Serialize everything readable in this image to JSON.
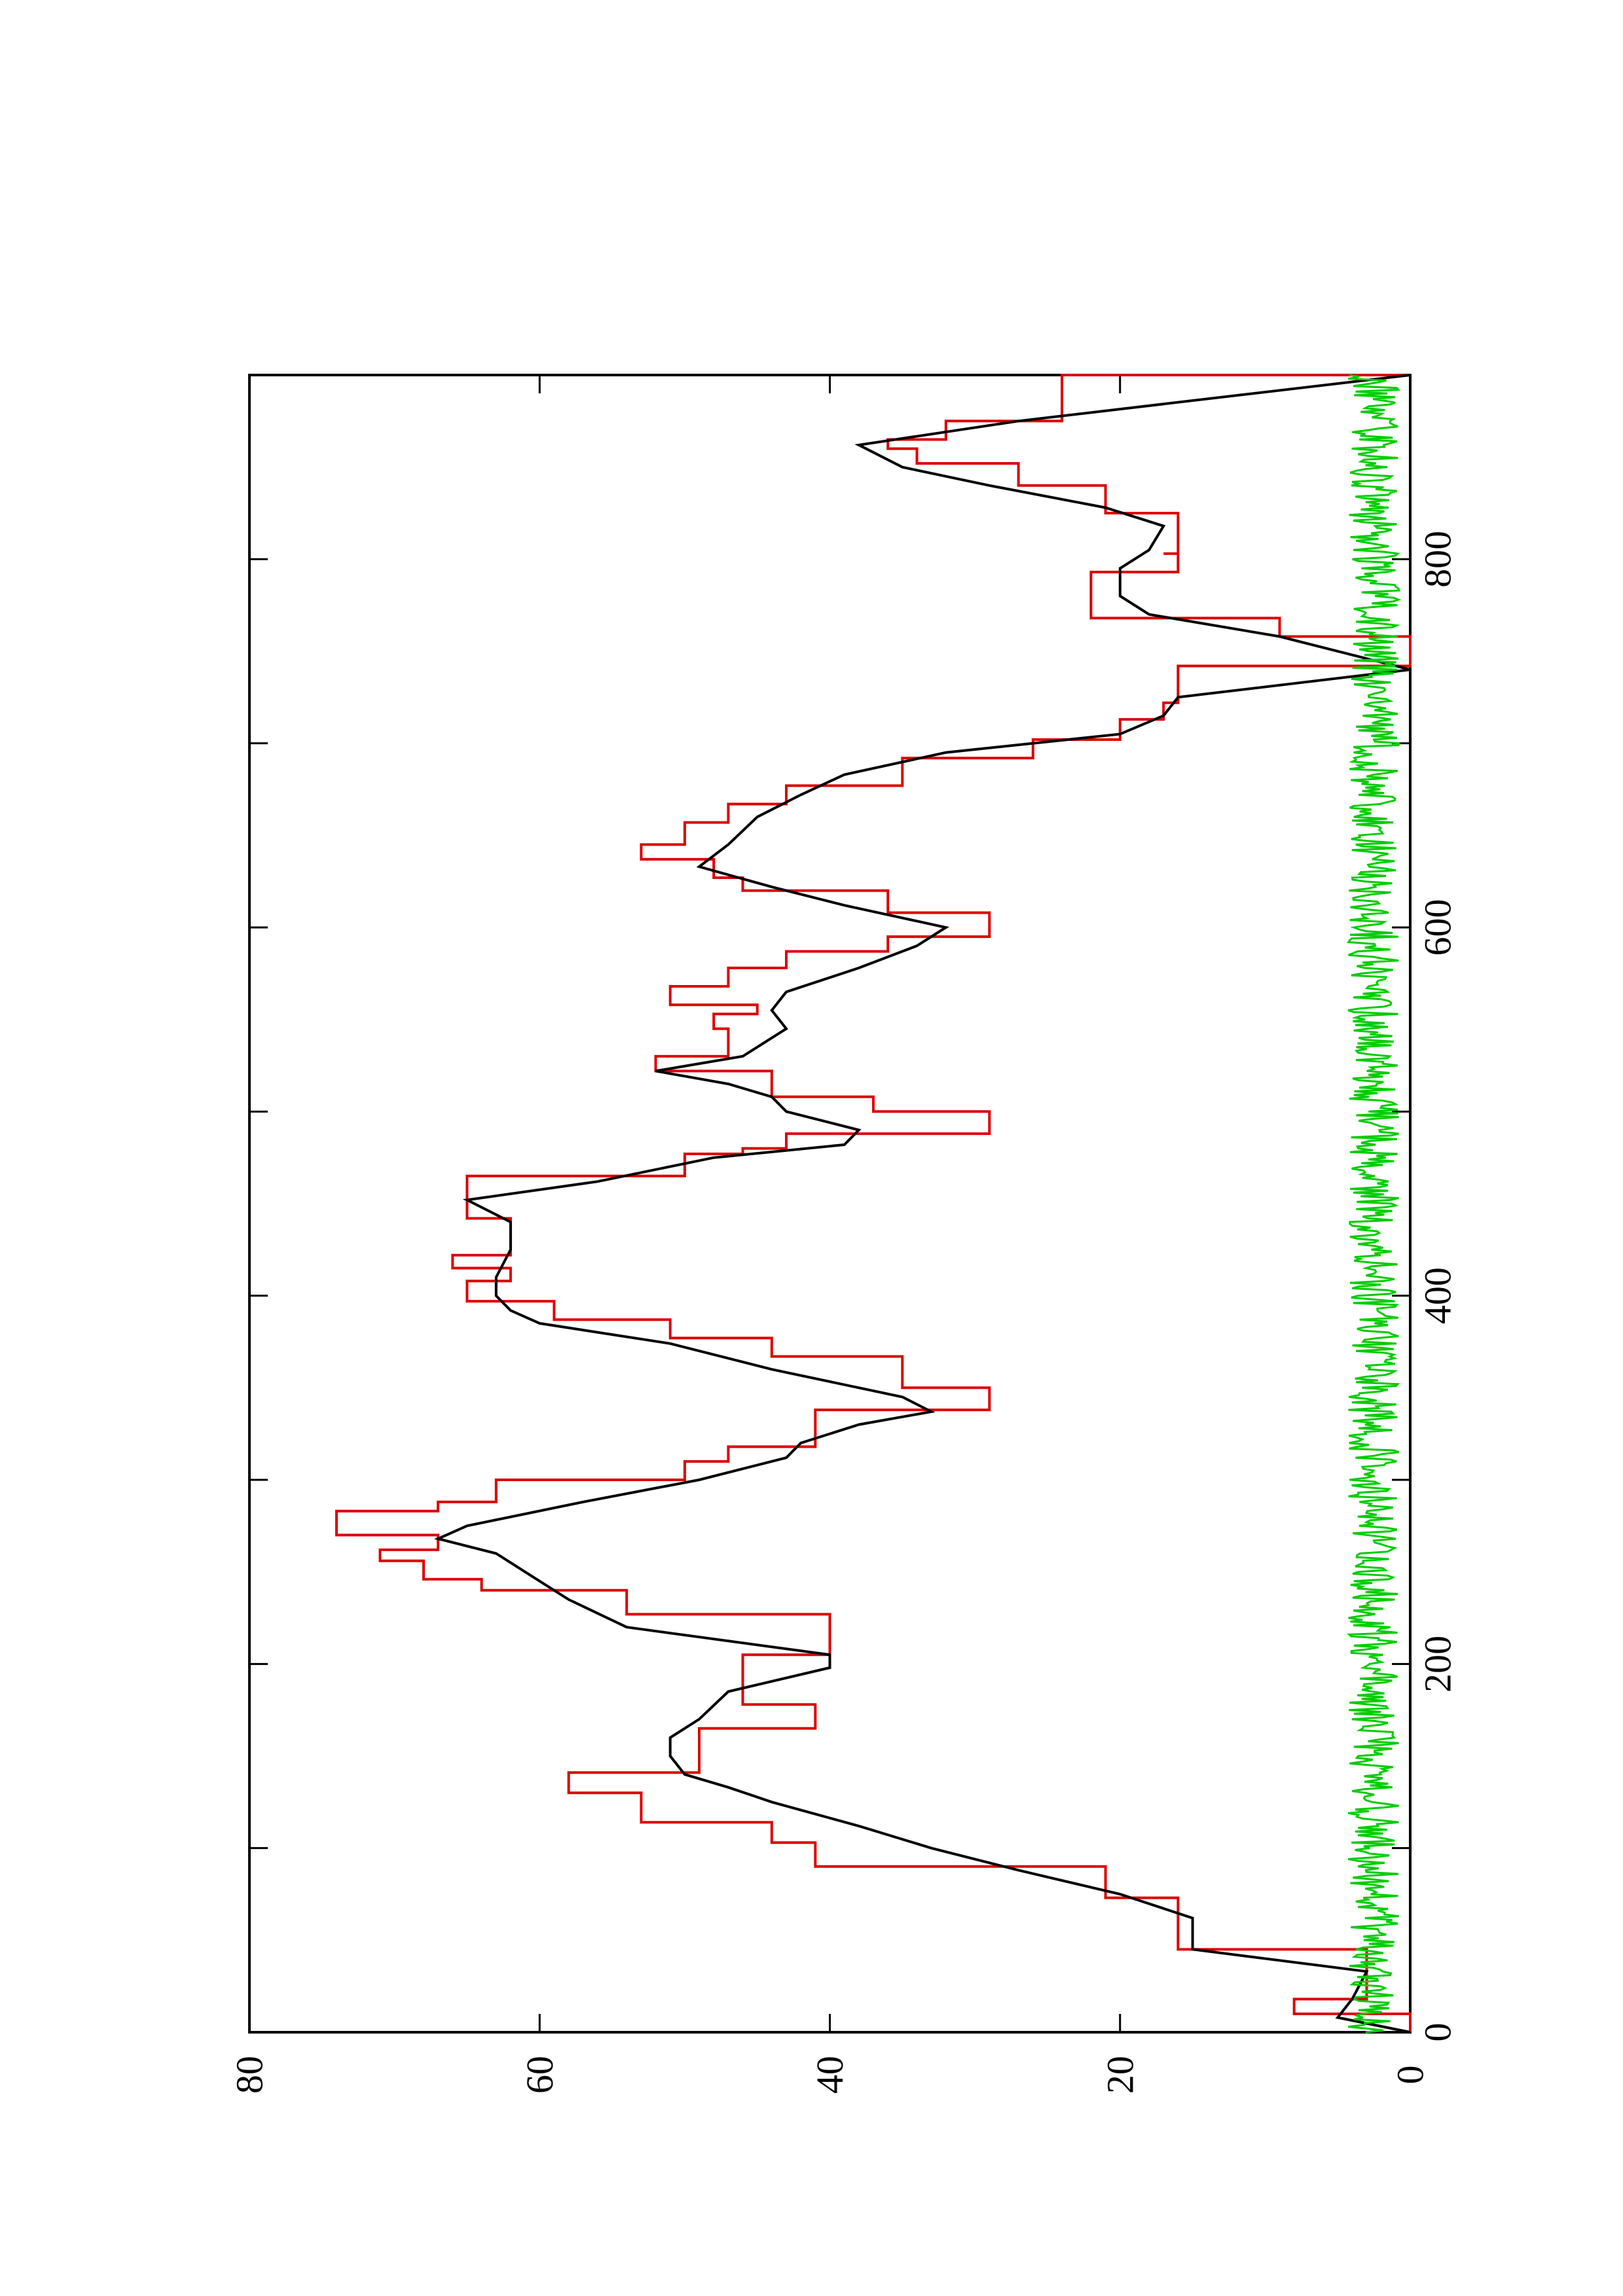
{
  "chart_data": {
    "type": "line",
    "orientation": "rotated 90 degrees counter-clockwise (x axis runs up the page, y axis runs left across the page)",
    "title": "",
    "xlabel": "",
    "ylabel": "",
    "xlim": [
      0,
      900
    ],
    "ylim": [
      0,
      80
    ],
    "x_ticks": [
      0,
      200,
      400,
      600,
      800
    ],
    "y_ticks": [
      0,
      20,
      40,
      60,
      80
    ],
    "x_minor_ticks": [
      100,
      300,
      500,
      700
    ],
    "x_tick_labels": [
      "0",
      "200",
      "400",
      "600",
      "800"
    ],
    "y_tick_labels": [
      "0",
      "20",
      "40",
      "60",
      "80"
    ],
    "grid": false,
    "legend": "none",
    "series": [
      {
        "color": "#dd0000",
        "style": "step",
        "points": [
          [
            0,
            0
          ],
          [
            10,
            8
          ],
          [
            18,
            3
          ],
          [
            33,
            3
          ],
          [
            45,
            16
          ],
          [
            62,
            16
          ],
          [
            73,
            21
          ],
          [
            90,
            41
          ],
          [
            103,
            44
          ],
          [
            114,
            53
          ],
          [
            130,
            58
          ],
          [
            141,
            49
          ],
          [
            165,
            46
          ],
          [
            165,
            41
          ],
          [
            178,
            41
          ],
          [
            178,
            46
          ],
          [
            205,
            40
          ],
          [
            227,
            54
          ],
          [
            240,
            64
          ],
          [
            246,
            68
          ],
          [
            256,
            71
          ],
          [
            262,
            67
          ],
          [
            270,
            74
          ],
          [
            283,
            67
          ],
          [
            288,
            63
          ],
          [
            300,
            50
          ],
          [
            310,
            47
          ],
          [
            318,
            41
          ],
          [
            324,
            41
          ],
          [
            338,
            29
          ],
          [
            350,
            35
          ],
          [
            367,
            44
          ],
          [
            377,
            51
          ],
          [
            387,
            59
          ],
          [
            397,
            65
          ],
          [
            408,
            62
          ],
          [
            415,
            66
          ],
          [
            422,
            62
          ],
          [
            433,
            62
          ],
          [
            442,
            65
          ],
          [
            452,
            65
          ],
          [
            465,
            50
          ],
          [
            477,
            46
          ],
          [
            480,
            43
          ],
          [
            488,
            29
          ],
          [
            500,
            37
          ],
          [
            508,
            44
          ],
          [
            522,
            52
          ],
          [
            530,
            47
          ],
          [
            545,
            48
          ],
          [
            553,
            45
          ],
          [
            558,
            51
          ],
          [
            568,
            47
          ],
          [
            578,
            43
          ],
          [
            587,
            36
          ],
          [
            595,
            29
          ],
          [
            608,
            36
          ],
          [
            620,
            46
          ],
          [
            627,
            48
          ],
          [
            637,
            53
          ],
          [
            645,
            50
          ],
          [
            657,
            47
          ],
          [
            667,
            43
          ],
          [
            677,
            35
          ],
          [
            692,
            26
          ],
          [
            702,
            20
          ],
          [
            713,
            17
          ],
          [
            722,
            16
          ],
          [
            742,
            0
          ],
          [
            758,
            9
          ],
          [
            768,
            22
          ],
          [
            785,
            22
          ],
          [
            793,
            16
          ],
          [
            803,
            17
          ],
          [
            803,
            16
          ],
          [
            812,
            16
          ],
          [
            825,
            21
          ],
          [
            840,
            27
          ],
          [
            852,
            34
          ],
          [
            860,
            36
          ],
          [
            865,
            32
          ],
          [
            875,
            24
          ],
          [
            900,
            0
          ]
        ]
      },
      {
        "color": "#000000",
        "style": "line",
        "points": [
          [
            0,
            0
          ],
          [
            8,
            5
          ],
          [
            18,
            4
          ],
          [
            33,
            3
          ],
          [
            45,
            15
          ],
          [
            62,
            15
          ],
          [
            75,
            20
          ],
          [
            88,
            27
          ],
          [
            100,
            33
          ],
          [
            112,
            38
          ],
          [
            125,
            44
          ],
          [
            133,
            47
          ],
          [
            140,
            50
          ],
          [
            150,
            51
          ],
          [
            160,
            51
          ],
          [
            170,
            49
          ],
          [
            185,
            47
          ],
          [
            198,
            40
          ],
          [
            205,
            40
          ],
          [
            220,
            54
          ],
          [
            235,
            58
          ],
          [
            250,
            61
          ],
          [
            260,
            63
          ],
          [
            268,
            67
          ],
          [
            275,
            65
          ],
          [
            288,
            57
          ],
          [
            300,
            49
          ],
          [
            312,
            43
          ],
          [
            320,
            42
          ],
          [
            330,
            38
          ],
          [
            337,
            33
          ],
          [
            345,
            35
          ],
          [
            360,
            44
          ],
          [
            374,
            51
          ],
          [
            385,
            60
          ],
          [
            392,
            62
          ],
          [
            400,
            63
          ],
          [
            410,
            63
          ],
          [
            425,
            62
          ],
          [
            440,
            62
          ],
          [
            452,
            65
          ],
          [
            462,
            56
          ],
          [
            475,
            48
          ],
          [
            482,
            39
          ],
          [
            490,
            38
          ],
          [
            500,
            43
          ],
          [
            508,
            44
          ],
          [
            515,
            47
          ],
          [
            522,
            52
          ],
          [
            530,
            46
          ],
          [
            545,
            43
          ],
          [
            555,
            44
          ],
          [
            565,
            43
          ],
          [
            578,
            38
          ],
          [
            590,
            34
          ],
          [
            600,
            32
          ],
          [
            612,
            39
          ],
          [
            622,
            44
          ],
          [
            633,
            49
          ],
          [
            645,
            47
          ],
          [
            660,
            45
          ],
          [
            672,
            42
          ],
          [
            683,
            39
          ],
          [
            695,
            32
          ],
          [
            705,
            20
          ],
          [
            715,
            17
          ],
          [
            725,
            16
          ],
          [
            740,
            0
          ],
          [
            758,
            9
          ],
          [
            770,
            18
          ],
          [
            780,
            20
          ],
          [
            795,
            20
          ],
          [
            805,
            18
          ],
          [
            818,
            17
          ],
          [
            828,
            21
          ],
          [
            840,
            29
          ],
          [
            850,
            35
          ],
          [
            862,
            38
          ],
          [
            875,
            27
          ],
          [
            900,
            0
          ]
        ]
      },
      {
        "color": "#00cc00",
        "style": "noisy",
        "baseline": 2,
        "amplitude": 2.2,
        "n_points": 900
      }
    ]
  }
}
